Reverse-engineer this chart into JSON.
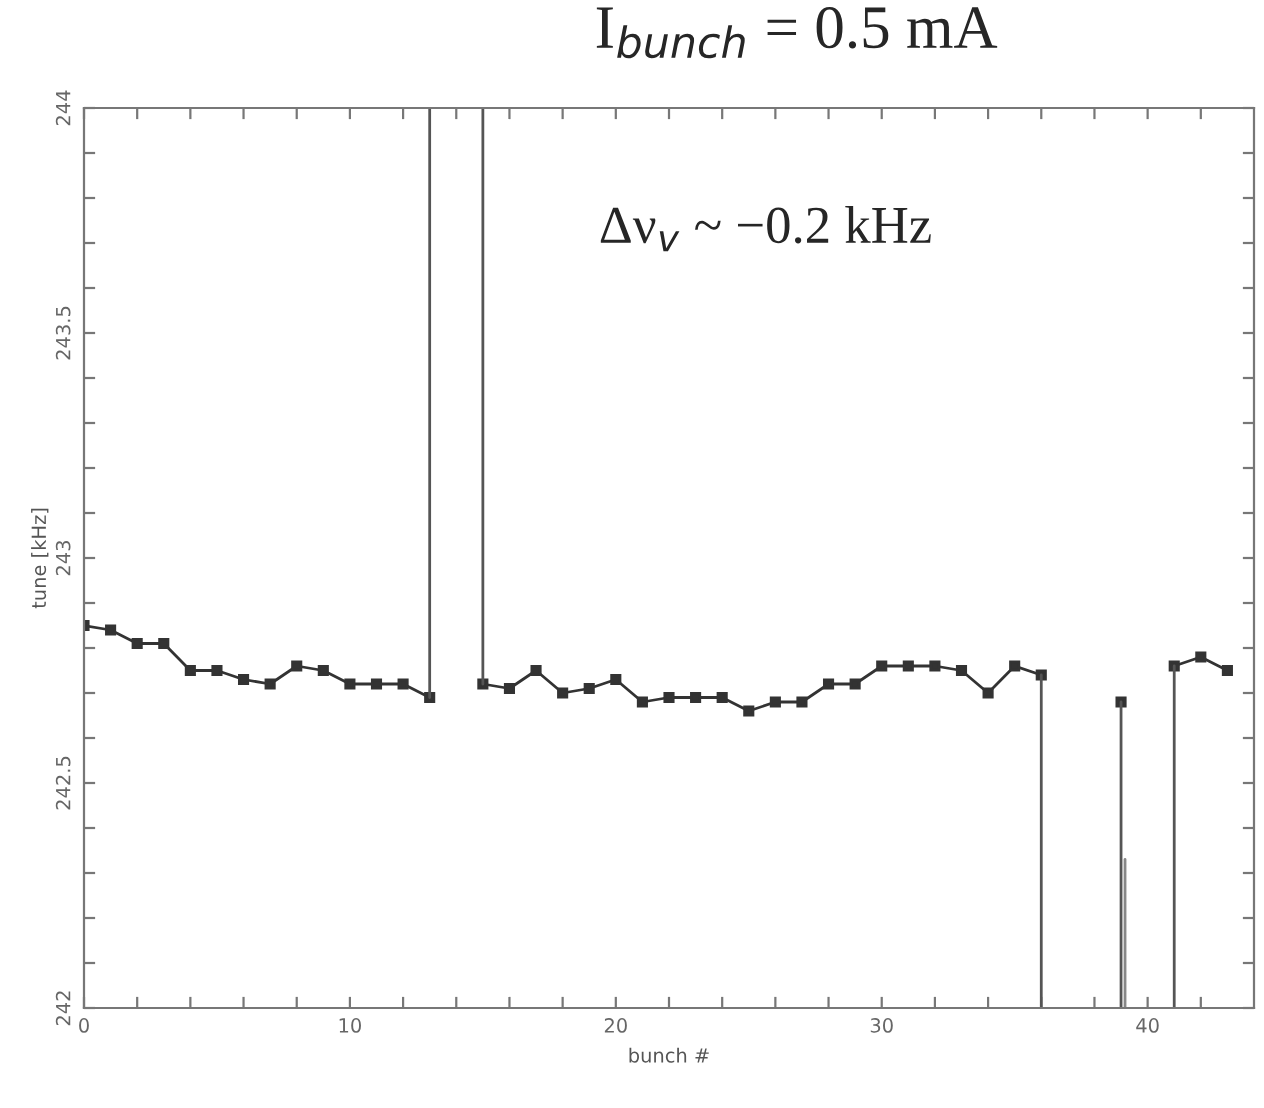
{
  "chart_data": {
    "type": "line",
    "title": "I$_{bunch}$ = 0.5 mA",
    "xlabel": "bunch #",
    "ylabel": "tune [kHz]",
    "annotations": [
      "Δν$_{v}$ ~ −0.2 kHz"
    ],
    "marker": "square",
    "line_style": "solid",
    "series": [
      {
        "color": "#333333",
        "x": [
          0,
          1,
          2,
          3,
          4,
          5,
          6,
          7,
          8,
          9,
          10,
          11,
          12,
          13,
          14,
          15,
          16,
          17,
          18,
          19,
          20,
          21,
          22,
          23,
          24,
          25,
          26,
          27,
          28,
          29,
          30,
          31,
          32,
          33,
          34,
          35,
          36,
          37,
          38,
          39,
          40,
          41,
          42,
          43
        ],
        "values": [
          242.85,
          242.84,
          242.81,
          242.81,
          242.75,
          242.75,
          242.73,
          242.72,
          242.76,
          242.75,
          242.72,
          242.72,
          242.72,
          242.69,
          null,
          242.72,
          242.71,
          242.75,
          242.7,
          242.71,
          242.73,
          242.68,
          242.69,
          242.69,
          242.69,
          242.66,
          242.68,
          242.68,
          242.72,
          242.72,
          242.76,
          242.76,
          242.76,
          242.75,
          242.7,
          242.76,
          242.74,
          null,
          null,
          242.68,
          null,
          242.76,
          242.78,
          242.75
        ]
      },
      {
        "color": "#555555",
        "marker": "none",
        "x": [
          13,
          13
        ],
        "values": [
          242.69,
          244
        ]
      },
      {
        "color": "#555555",
        "marker": "none",
        "x": [
          15,
          15
        ],
        "values": [
          244,
          242.72
        ]
      },
      {
        "color": "#555555",
        "marker": "none",
        "x": [
          36,
          36
        ],
        "values": [
          242.74,
          242
        ]
      },
      {
        "color": "#555555",
        "marker": "none",
        "x": [
          39,
          39
        ],
        "values": [
          242.68,
          242
        ]
      },
      {
        "color": "#888888",
        "marker": "none",
        "x": [
          39.15,
          39.15
        ],
        "values": [
          242.33,
          242
        ]
      },
      {
        "color": "#555555",
        "marker": "none",
        "x": [
          41,
          41
        ],
        "values": [
          242,
          242.76
        ]
      }
    ],
    "xlim": [
      0,
      44
    ],
    "ylim": [
      242,
      244
    ],
    "xticks": [
      0,
      {
        "value": 2,
        "label": null
      },
      {
        "value": 4,
        "label": null
      },
      {
        "value": 6,
        "label": null
      },
      {
        "value": 8,
        "label": null
      },
      10,
      {
        "value": 12,
        "label": null
      },
      {
        "value": 14,
        "label": null
      },
      {
        "value": 16,
        "label": null
      },
      {
        "value": 18,
        "label": null
      },
      20,
      {
        "value": 22,
        "label": null
      },
      {
        "value": 24,
        "label": null
      },
      {
        "value": 26,
        "label": null
      },
      {
        "value": 28,
        "label": null
      },
      30,
      {
        "value": 32,
        "label": null
      },
      {
        "value": 34,
        "label": null
      },
      {
        "value": 36,
        "label": null
      },
      {
        "value": 38,
        "label": null
      },
      40,
      {
        "value": 42,
        "label": null
      }
    ],
    "yticks": [
      242,
      {
        "value": 242.1,
        "label": null
      },
      {
        "value": 242.2,
        "label": null
      },
      {
        "value": 242.3,
        "label": null
      },
      {
        "value": 242.4,
        "label": null
      },
      242.5,
      {
        "value": 242.6,
        "label": null
      },
      {
        "value": 242.7,
        "label": null
      },
      {
        "value": 242.8,
        "label": null
      },
      {
        "value": 242.9,
        "label": null
      },
      243,
      {
        "value": 243.1,
        "label": null
      },
      {
        "value": 243.2,
        "label": null
      },
      {
        "value": 243.3,
        "label": null
      },
      {
        "value": 243.4,
        "label": null
      },
      243.5,
      {
        "value": 243.6,
        "label": null
      },
      {
        "value": 243.7,
        "label": null
      },
      {
        "value": 243.8,
        "label": null
      },
      {
        "value": 243.9,
        "label": null
      },
      244
    ],
    "grid": false,
    "legend": false
  }
}
